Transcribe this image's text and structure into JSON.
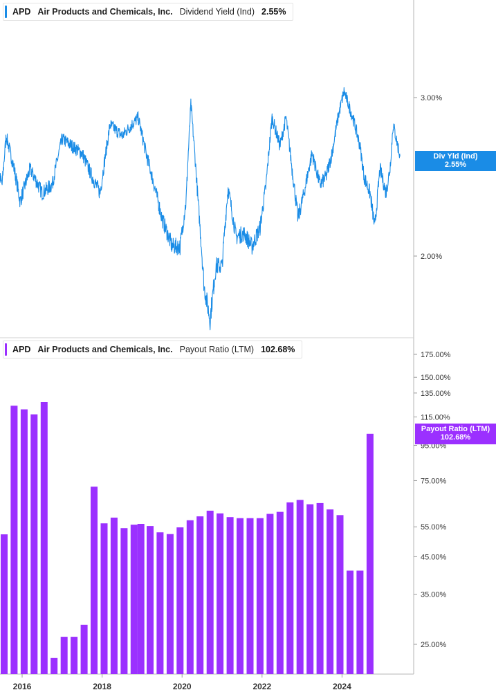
{
  "colors": {
    "line": "#1a8ce6",
    "bar": "#9b30ff",
    "axis": "#9a9a9a",
    "tick_text": "#333333"
  },
  "top_legend": {
    "ticker": "APD",
    "company": "Air Products and Chemicals, Inc.",
    "metric": "Dividend Yield (Ind)",
    "value": "2.55%"
  },
  "bottom_legend": {
    "ticker": "APD",
    "company": "Air Products and Chemicals, Inc.",
    "metric": "Payout Ratio (LTM)",
    "value": "102.68%"
  },
  "top_tag": {
    "label": "Div Yld (Ind)",
    "value": "2.55%"
  },
  "bottom_tag": {
    "label": "Payout Ratio (LTM)",
    "value": "102.68%"
  },
  "chart_data": [
    {
      "type": "line",
      "series": [
        {
          "name": "Dividend Yield (Ind)",
          "color": "#1a8ce6"
        }
      ],
      "anchors": [
        [
          2015.0,
          2.45
        ],
        [
          2015.25,
          2.6
        ],
        [
          2015.5,
          2.4
        ],
        [
          2015.6,
          2.72
        ],
        [
          2015.8,
          2.5
        ],
        [
          2015.95,
          2.3
        ],
        [
          2016.2,
          2.5
        ],
        [
          2016.5,
          2.35
        ],
        [
          2016.75,
          2.4
        ],
        [
          2017.0,
          2.7
        ],
        [
          2017.25,
          2.65
        ],
        [
          2017.5,
          2.6
        ],
        [
          2017.75,
          2.45
        ],
        [
          2017.95,
          2.35
        ],
        [
          2018.2,
          2.8
        ],
        [
          2018.5,
          2.72
        ],
        [
          2018.75,
          2.8
        ],
        [
          2018.9,
          2.85
        ],
        [
          2019.1,
          2.6
        ],
        [
          2019.3,
          2.4
        ],
        [
          2019.5,
          2.2
        ],
        [
          2019.75,
          2.05
        ],
        [
          2019.95,
          2.05
        ],
        [
          2020.1,
          2.3
        ],
        [
          2020.22,
          2.95
        ],
        [
          2020.4,
          2.3
        ],
        [
          2020.55,
          1.85
        ],
        [
          2020.7,
          1.7
        ],
        [
          2020.85,
          1.95
        ],
        [
          2021.0,
          1.95
        ],
        [
          2021.15,
          2.38
        ],
        [
          2021.35,
          2.1
        ],
        [
          2021.55,
          2.12
        ],
        [
          2021.75,
          2.05
        ],
        [
          2021.95,
          2.15
        ],
        [
          2022.1,
          2.4
        ],
        [
          2022.25,
          2.85
        ],
        [
          2022.45,
          2.65
        ],
        [
          2022.6,
          2.85
        ],
        [
          2022.75,
          2.5
        ],
        [
          2022.9,
          2.2
        ],
        [
          2023.05,
          2.35
        ],
        [
          2023.25,
          2.6
        ],
        [
          2023.45,
          2.4
        ],
        [
          2023.6,
          2.45
        ],
        [
          2023.75,
          2.6
        ],
        [
          2023.9,
          2.85
        ],
        [
          2024.05,
          3.05
        ],
        [
          2024.3,
          2.82
        ],
        [
          2024.45,
          2.65
        ],
        [
          2024.55,
          2.45
        ],
        [
          2024.7,
          2.35
        ],
        [
          2024.82,
          2.15
        ],
        [
          2024.95,
          2.5
        ],
        [
          2025.1,
          2.35
        ],
        [
          2025.2,
          2.5
        ],
        [
          2025.28,
          2.8
        ],
        [
          2025.45,
          2.58
        ]
      ],
      "y_ticks": [
        "2.00%",
        "3.00%"
      ],
      "x_ticks": [
        "2016",
        "2018",
        "2020",
        "2022",
        "2024"
      ],
      "scale": "log"
    },
    {
      "type": "bar",
      "series": [
        {
          "name": "Payout Ratio (LTM)",
          "color": "#9b30ff"
        }
      ],
      "points": [
        [
          2015.05,
          63
        ],
        [
          2015.3,
          53
        ],
        [
          2015.55,
          52.3
        ],
        [
          2015.8,
          124
        ],
        [
          2016.05,
          121
        ],
        [
          2016.3,
          117
        ],
        [
          2016.55,
          127
        ],
        [
          2016.8,
          22.8
        ],
        [
          2017.05,
          26.3
        ],
        [
          2017.3,
          26.3
        ],
        [
          2017.55,
          28.5
        ],
        [
          2017.8,
          72
        ],
        [
          2018.05,
          56.3
        ],
        [
          2018.3,
          58.5
        ],
        [
          2018.55,
          54.5
        ],
        [
          2018.8,
          55.8
        ],
        [
          2018.97,
          56.1
        ],
        [
          2019.2,
          55.3
        ],
        [
          2019.45,
          53
        ],
        [
          2019.7,
          52.4
        ],
        [
          2019.95,
          54.8
        ],
        [
          2020.2,
          57.5
        ],
        [
          2020.45,
          59
        ],
        [
          2020.7,
          61.3
        ],
        [
          2020.95,
          60.2
        ],
        [
          2021.2,
          58.7
        ],
        [
          2021.45,
          58.3
        ],
        [
          2021.7,
          58.3
        ],
        [
          2021.95,
          58.3
        ],
        [
          2022.2,
          60
        ],
        [
          2022.45,
          60.8
        ],
        [
          2022.7,
          64.8
        ],
        [
          2022.95,
          65.9
        ],
        [
          2023.2,
          64
        ],
        [
          2023.45,
          64.5
        ],
        [
          2023.7,
          61.8
        ],
        [
          2023.95,
          59.5
        ],
        [
          2024.2,
          41
        ],
        [
          2024.45,
          41
        ],
        [
          2024.7,
          102.68
        ]
      ],
      "y_ticks": [
        "25.00%",
        "35.00%",
        "45.00%",
        "55.00%",
        "75.00%",
        "95.00%",
        "115.00%",
        "135.00%",
        "150.00%",
        "175.00%"
      ],
      "x_ticks": [
        "2016",
        "2018",
        "2020",
        "2022",
        "2024"
      ],
      "scale": "log"
    }
  ]
}
